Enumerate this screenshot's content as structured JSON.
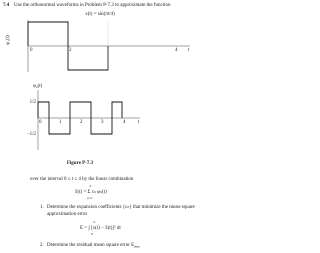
{
  "problem": {
    "number": "7.4",
    "text": "Use the orthonormal waveforms in Problem P-7.3 to approximate the function"
  },
  "function": "x(t) = sin(πt/4)",
  "figure": {
    "plot1": {
      "y_label": "φ₁(t)",
      "x_ticks": [
        "0",
        "2",
        "4"
      ],
      "x_label": "t"
    },
    "plot2": {
      "y_label": "φ₄(t)",
      "x_ticks": [
        "0",
        "1",
        "2",
        "3",
        "4"
      ],
      "x_label": "t",
      "y_ticks": [
        "1/2",
        "−1/2"
      ]
    },
    "caption": "Figure P-7.3"
  },
  "interval_text": "over the interval 0 ≤ t ≤ 4 by the linear combination",
  "combination": "x̂(t) = Σ cₙ φₙ(t)",
  "sum_limits": {
    "upper": "4",
    "lower": "n=1"
  },
  "items": [
    {
      "number": "1.",
      "text": "Determine the expansion coefficients {cₙ} that minimize the mean-square",
      "text2": "approximation error"
    },
    {
      "number": "2.",
      "text": "Determine the residual mean square error E",
      "subscript": "min"
    }
  ],
  "error_equation": "E = ∫ [x(t) − x̂(t)]² dt",
  "integral_limits": {
    "upper": "4",
    "lower": "0"
  }
}
